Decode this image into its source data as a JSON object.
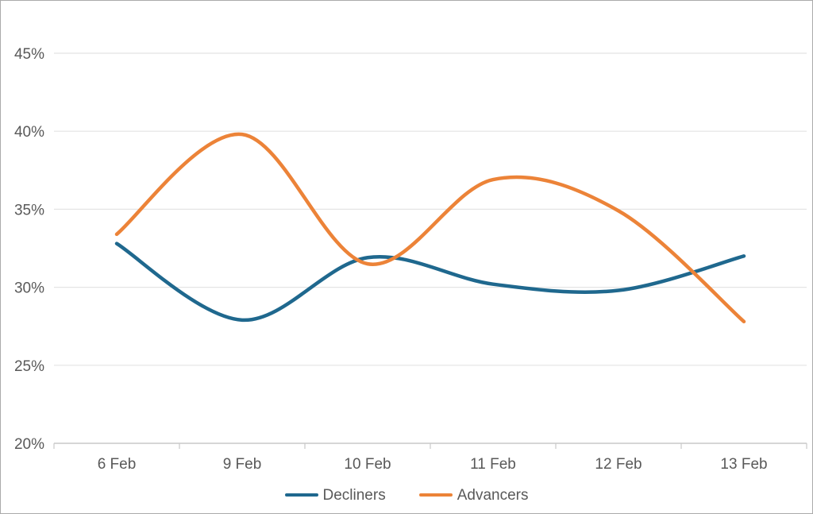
{
  "chart_data": {
    "type": "line",
    "title": "",
    "xlabel": "",
    "ylabel": "",
    "categories": [
      "6 Feb",
      "9 Feb",
      "10 Feb",
      "11 Feb",
      "12 Feb",
      "13 Feb"
    ],
    "series": [
      {
        "name": "Decliners",
        "color": "#1F688E",
        "values": [
          32.8,
          27.9,
          31.9,
          30.2,
          29.8,
          32.0
        ]
      },
      {
        "name": "Advancers",
        "color": "#EC8338",
        "values": [
          33.4,
          39.8,
          31.5,
          36.9,
          34.9,
          27.8
        ]
      }
    ],
    "ylim": [
      20,
      45
    ],
    "yticks": [
      20,
      25,
      30,
      35,
      40,
      45
    ],
    "ytick_suffix": "%",
    "grid": true,
    "line_style": "smooth",
    "legend_position": "bottom"
  },
  "colors": {
    "gridline": "#e4e4e4",
    "axis_line": "#c9c9c9",
    "tick_mark": "#c9c9c9",
    "label_text": "#595959",
    "frame_border": "#ababab",
    "background": "#ffffff"
  }
}
